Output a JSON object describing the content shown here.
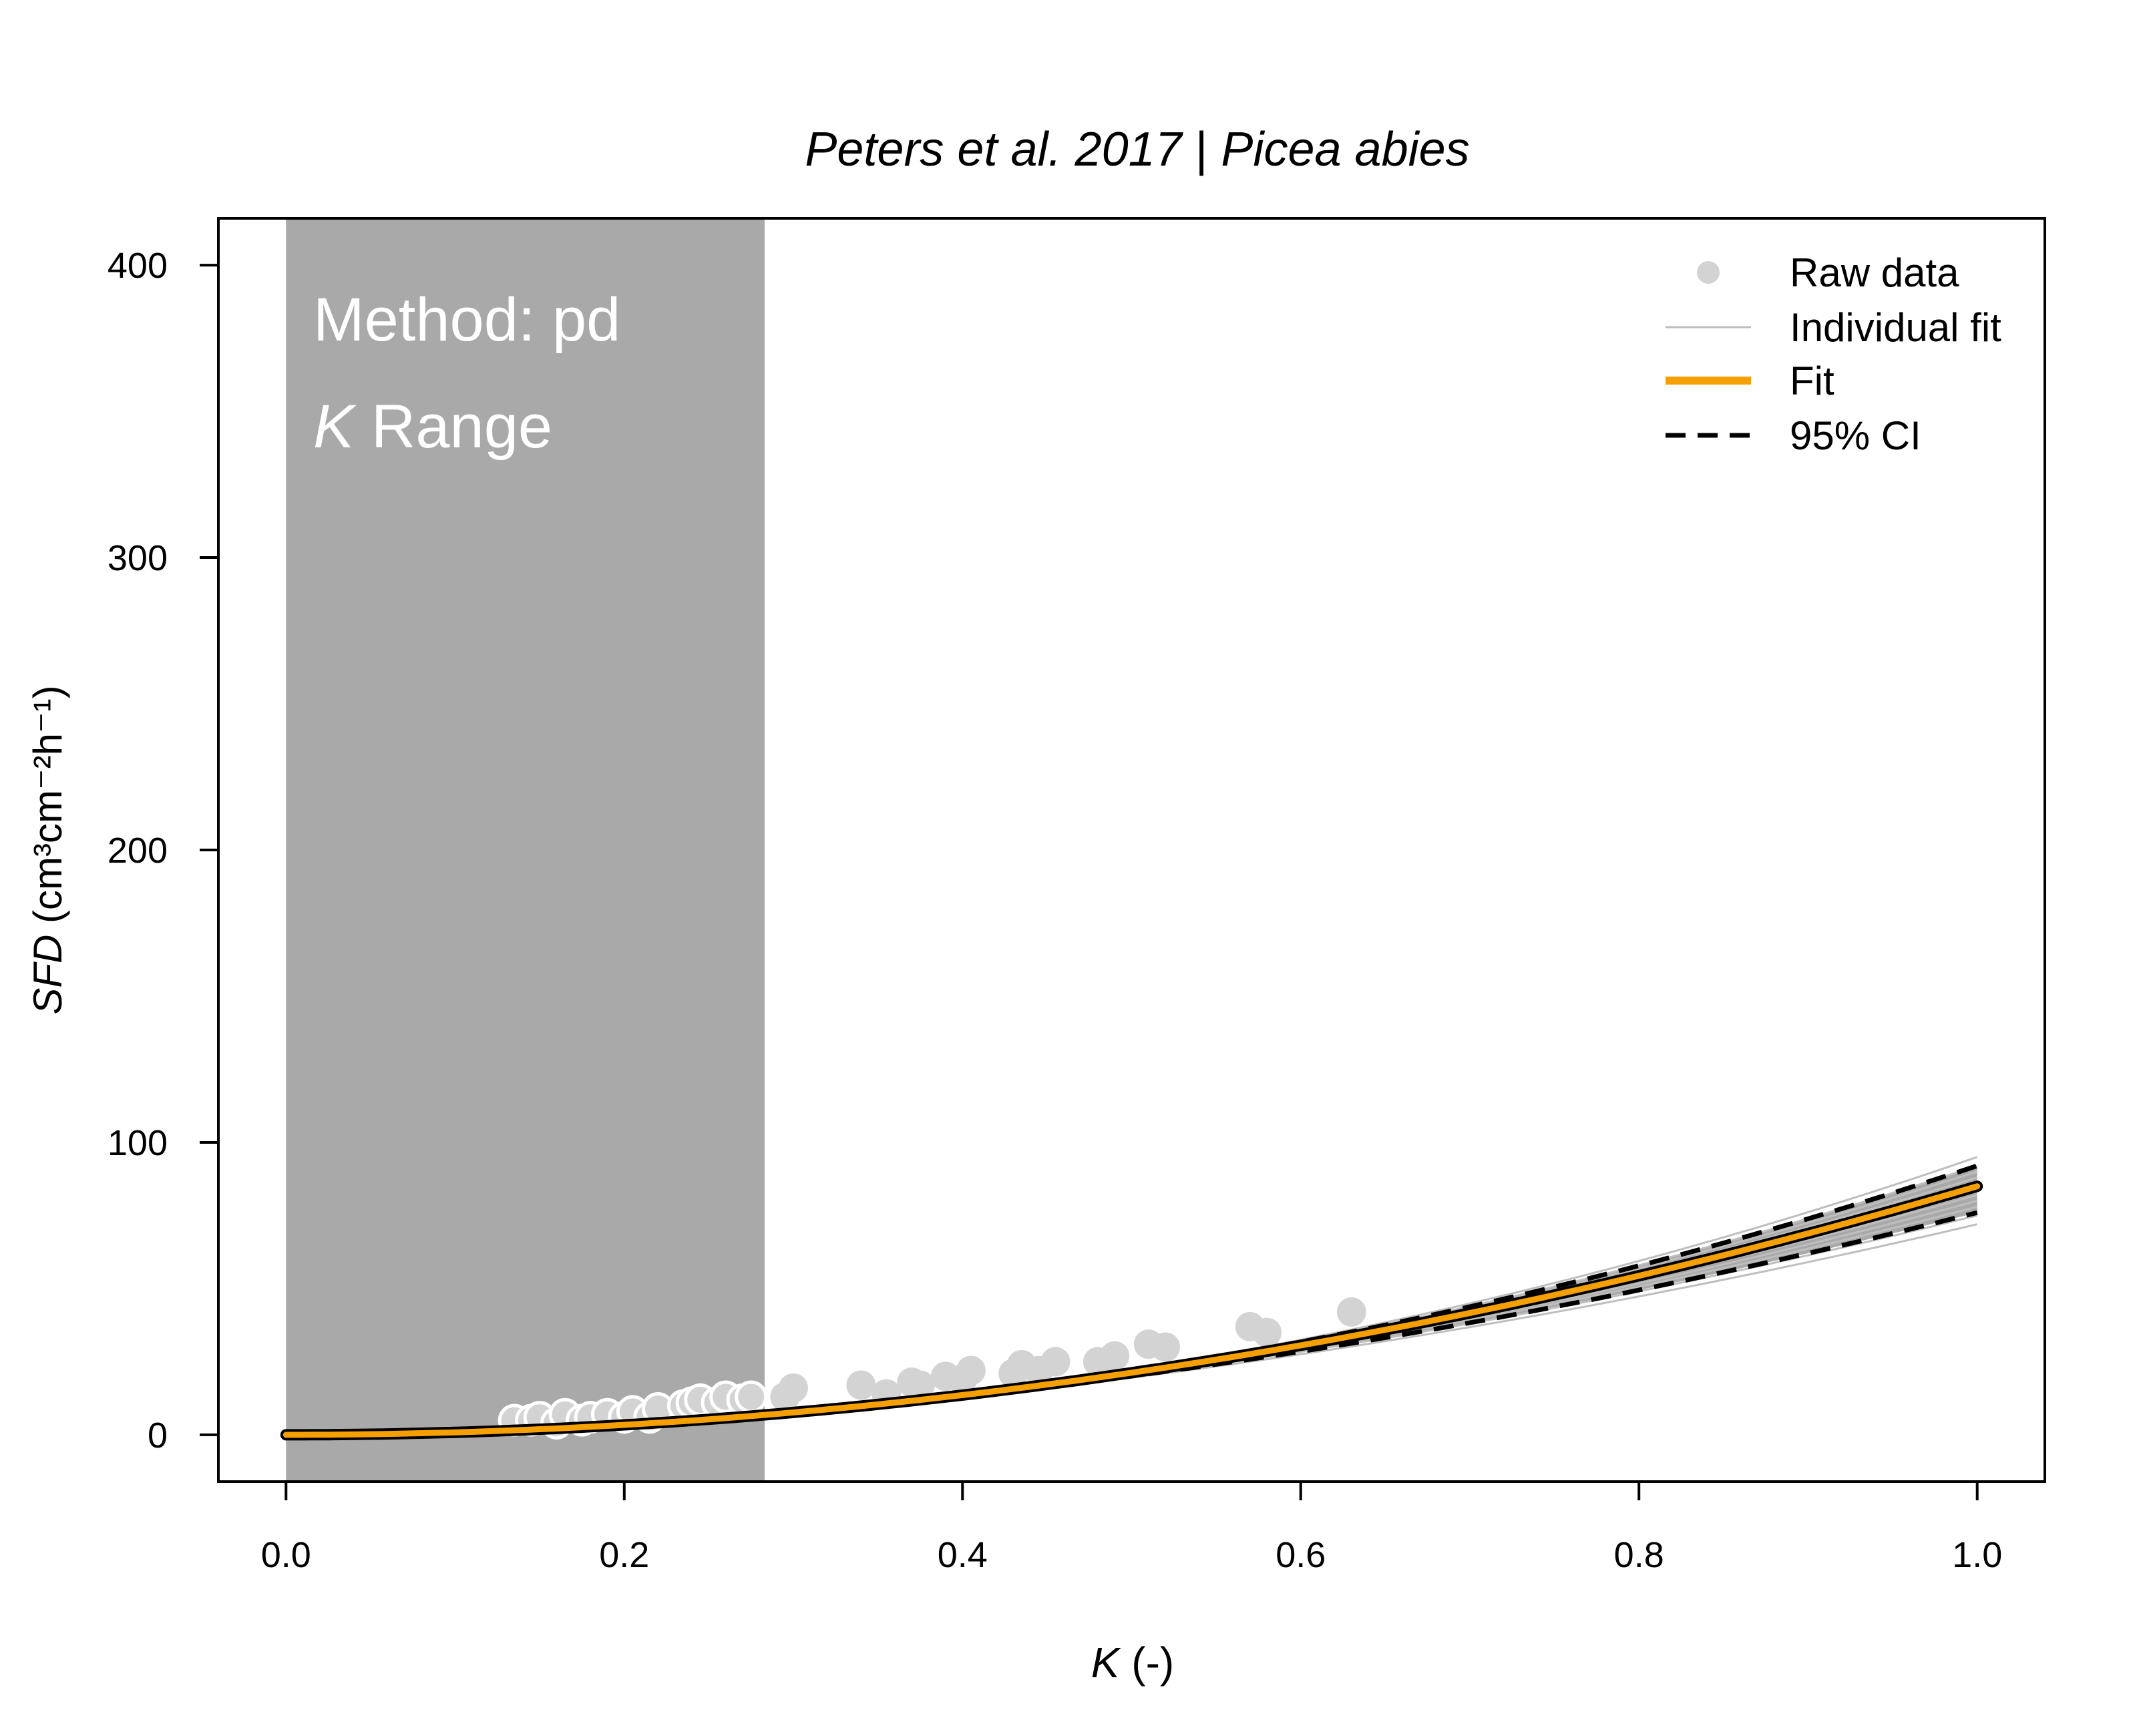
{
  "chart_data": {
    "type": "scatter",
    "title_part1": "Peters et al. 2017",
    "title_sep": " | ",
    "title_part2": "Picea abies",
    "xlabel_italic": "K",
    "xlabel_rest": " (-)",
    "ylabel_italic": "SFD",
    "ylabel_rest": "(cm³cm⁻²h⁻¹)",
    "xlim": [
      -0.04,
      1.04
    ],
    "ylim": [
      -16,
      416
    ],
    "x_ticks": [
      "0.0",
      "0.2",
      "0.4",
      "0.6",
      "0.8",
      "1.0"
    ],
    "y_ticks": [
      "0",
      "100",
      "200",
      "300",
      "400"
    ],
    "shaded_range": {
      "xmin": 0.0,
      "xmax": 0.283,
      "color": "#a9a9a9"
    },
    "annotation": {
      "line1": "Method: pd",
      "line2_italic": "K",
      "line2_rest": " Range"
    },
    "legend": {
      "position": "top-right",
      "items": [
        {
          "label": "Raw data",
          "kind": "point",
          "color": "#d3d3d3"
        },
        {
          "label": "Individual fit",
          "kind": "thin-line",
          "color": "#bebebe"
        },
        {
          "label": "Fit",
          "kind": "thick-line",
          "color": "#f5a000"
        },
        {
          "label": "95% CI",
          "kind": "dashed-line",
          "color": "#000000"
        }
      ]
    },
    "fit": {
      "a": 85,
      "b": 2.0,
      "color": "#f5a000"
    },
    "ci_upper": {
      "a": 92,
      "b": 2.08
    },
    "ci_lower": {
      "a": 76,
      "b": 1.92
    },
    "individual_fits": [
      {
        "a": 95,
        "b": 2.1
      },
      {
        "a": 92,
        "b": 2.07
      },
      {
        "a": 90,
        "b": 2.05
      },
      {
        "a": 88,
        "b": 2.03
      },
      {
        "a": 86,
        "b": 2.0
      },
      {
        "a": 84,
        "b": 1.98
      },
      {
        "a": 82,
        "b": 1.96
      },
      {
        "a": 80,
        "b": 1.95
      },
      {
        "a": 78,
        "b": 1.93
      },
      {
        "a": 75,
        "b": 1.9
      },
      {
        "a": 72,
        "b": 1.88
      }
    ],
    "raw_points": {
      "x": [
        0.135,
        0.145,
        0.15,
        0.16,
        0.165,
        0.175,
        0.18,
        0.19,
        0.2,
        0.205,
        0.215,
        0.22,
        0.235,
        0.24,
        0.245,
        0.255,
        0.26,
        0.27,
        0.275,
        0.295,
        0.3,
        0.34,
        0.355,
        0.37,
        0.375,
        0.39,
        0.4,
        0.405,
        0.43,
        0.435,
        0.445,
        0.455,
        0.48,
        0.49,
        0.51,
        0.52,
        0.57,
        0.58,
        0.63
      ],
      "y": [
        5,
        5,
        6,
        4,
        7,
        5,
        6,
        7,
        6,
        8,
        6,
        9,
        10,
        11,
        12,
        11,
        13,
        12,
        13,
        13,
        16,
        17,
        14,
        18,
        17,
        20,
        19,
        22,
        21,
        24,
        22,
        25,
        25,
        27,
        31,
        30,
        37,
        35,
        42
      ]
    }
  }
}
